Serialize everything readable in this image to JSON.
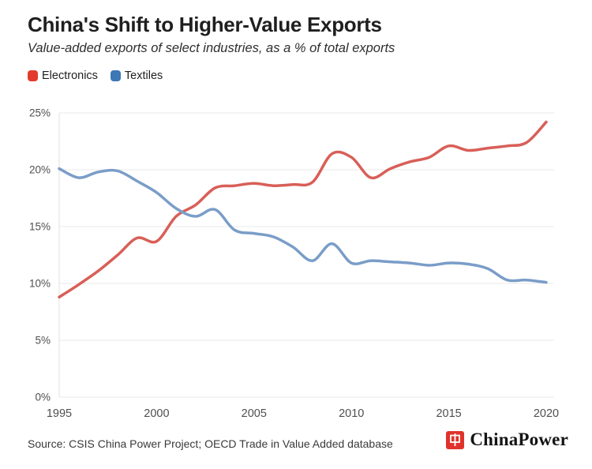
{
  "chart_data": {
    "type": "line",
    "title": "China's Shift to Higher-Value Exports",
    "subtitle": "Value-added exports of select industries, as a % of total exports",
    "x": [
      1995,
      1996,
      1997,
      1998,
      1999,
      2000,
      2001,
      2002,
      2003,
      2004,
      2005,
      2006,
      2007,
      2008,
      2009,
      2010,
      2011,
      2012,
      2013,
      2014,
      2015,
      2016,
      2017,
      2018,
      2019,
      2020
    ],
    "series": [
      {
        "name": "Electronics",
        "color": "#d85f58",
        "swatch_color": "#e23b2e",
        "values": [
          8.8,
          9.9,
          11.1,
          12.5,
          14.0,
          13.7,
          15.9,
          16.9,
          18.4,
          18.6,
          18.8,
          18.6,
          18.7,
          18.9,
          21.4,
          21.1,
          19.3,
          20.1,
          20.7,
          21.1,
          22.1,
          21.7,
          21.9,
          22.1,
          22.4,
          24.2
        ]
      },
      {
        "name": "Textiles",
        "color": "#7a9dc8",
        "swatch_color": "#3d77b6",
        "values": [
          20.1,
          19.3,
          19.8,
          19.9,
          19.0,
          18.0,
          16.6,
          15.9,
          16.5,
          14.7,
          14.4,
          14.1,
          13.2,
          12.0,
          13.5,
          11.8,
          12.0,
          11.9,
          11.8,
          11.6,
          11.8,
          11.7,
          11.3,
          10.3,
          10.3,
          10.1
        ]
      }
    ],
    "xlabel": "",
    "ylabel": "",
    "xlim": [
      1995,
      2020
    ],
    "ylim": [
      0,
      25
    ],
    "x_tick_values": [
      1995,
      2000,
      2005,
      2010,
      2015,
      2020
    ],
    "x_tick_labels": [
      "1995",
      "2000",
      "2005",
      "2010",
      "2015",
      "2020"
    ],
    "y_tick_values": [
      0,
      5,
      10,
      15,
      20,
      25
    ],
    "y_tick_labels": [
      "0%",
      "5%",
      "10%",
      "15%",
      "20%",
      "25%"
    ],
    "grid": "horizontal",
    "legend_position": "top-left"
  },
  "footer": {
    "source": "Source: CSIS China Power Project; OECD Trade in Value Added database",
    "logo_text": "ChinaPower"
  },
  "colors": {
    "grid": "#e8e8e8",
    "axis_line": "#e0e0e0",
    "tick_label": "#4f4f4f",
    "logo_red": "#e0322b"
  }
}
